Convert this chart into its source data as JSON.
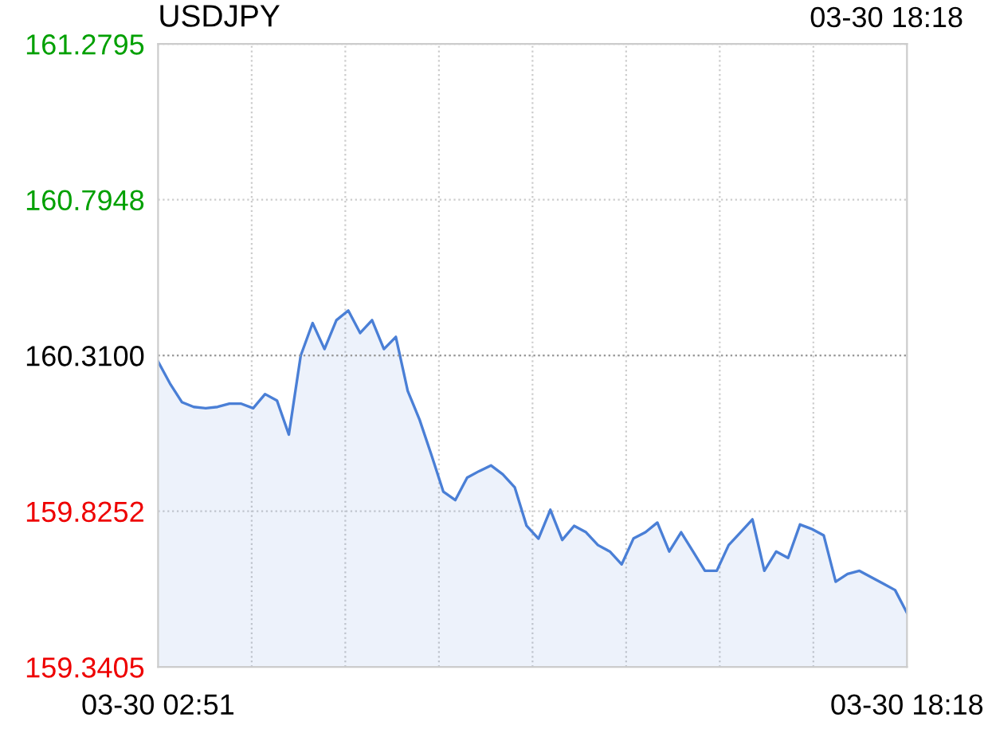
{
  "chart_data": {
    "type": "area",
    "title": "USDJPY",
    "annotations": [
      "03-30 18:18"
    ],
    "categories": [
      "03-30 02:51",
      null,
      null,
      null,
      null,
      null,
      null,
      null,
      null,
      null,
      null,
      null,
      null,
      null,
      null,
      null,
      null,
      null,
      null,
      null,
      null,
      null,
      null,
      null,
      null,
      null,
      null,
      null,
      null,
      null,
      null,
      null,
      null,
      null,
      null,
      null,
      null,
      null,
      null,
      null,
      null,
      null,
      null,
      null,
      null,
      null,
      null,
      null,
      null,
      null,
      null,
      null,
      null,
      null,
      null,
      null,
      null,
      null,
      null,
      null,
      null,
      null,
      null,
      "03-30 18:18"
    ],
    "series": [
      {
        "color": "#4a7fd6",
        "values": [
          160.291,
          160.223,
          160.165,
          160.15,
          160.146,
          160.15,
          160.16,
          160.16,
          160.146,
          160.19,
          160.17,
          160.064,
          160.31,
          160.411,
          160.33,
          160.42,
          160.45,
          160.38,
          160.42,
          160.33,
          160.368,
          160.2,
          160.11,
          160.0,
          159.886,
          159.86,
          159.93,
          159.95,
          159.968,
          159.94,
          159.9,
          159.78,
          159.74,
          159.83,
          159.736,
          159.78,
          159.76,
          159.72,
          159.7,
          159.66,
          159.741,
          159.76,
          159.79,
          159.7,
          159.76,
          159.7,
          159.64,
          159.64,
          159.72,
          159.76,
          159.8,
          159.64,
          159.7,
          159.68,
          159.784,
          159.77,
          159.75,
          159.606,
          159.63,
          159.64,
          159.62,
          159.6,
          159.58,
          159.509
        ]
      }
    ],
    "ylim": [
      159.3405,
      161.2795
    ],
    "yticks": [
      161.2795,
      160.7948,
      {
        "value": 160.31,
        "label": "160.3100"
      },
      159.8252,
      159.3405
    ],
    "ref_lines": [
      {
        "axis": "y",
        "value": 160.31,
        "color": "#999999",
        "line_style": "dotted"
      }
    ],
    "grid": true,
    "marker": "none",
    "line_style": "solid"
  }
}
